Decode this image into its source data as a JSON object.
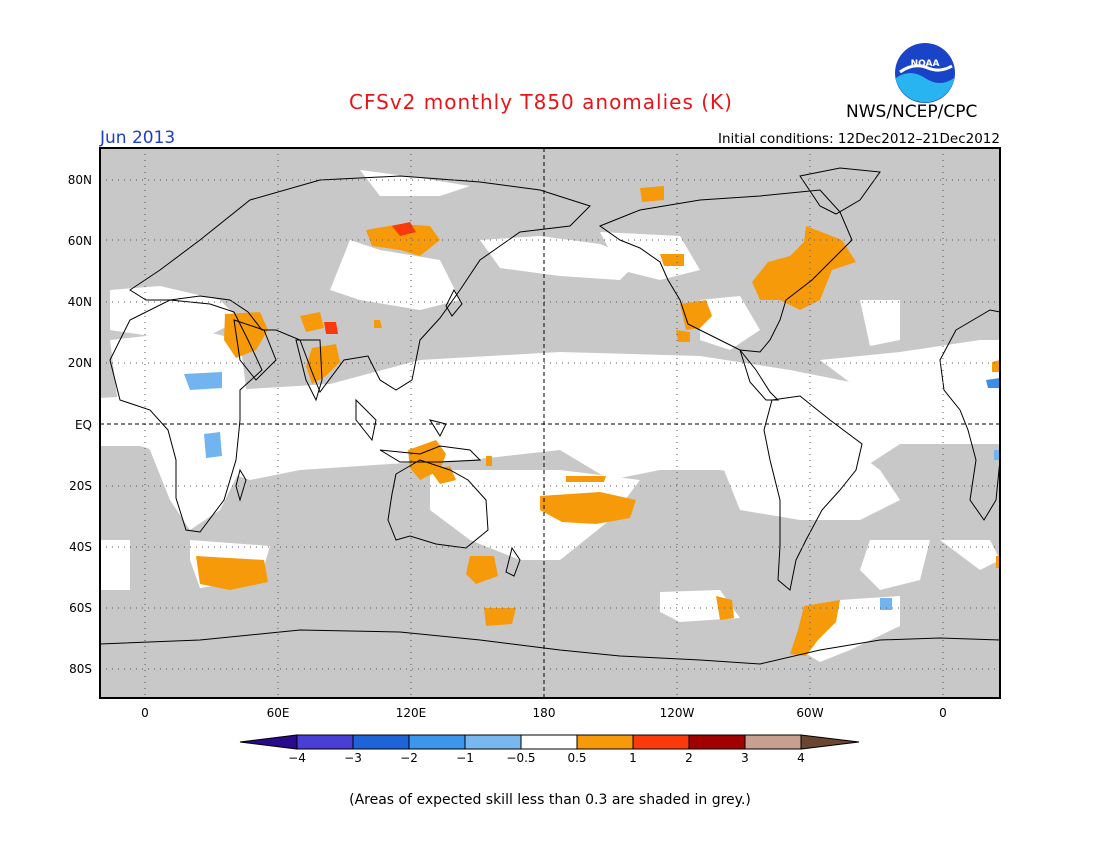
{
  "header": {
    "title": "CFSv2 monthly T850 anomalies (K)",
    "date": "Jun 2013",
    "initial_conditions": "Initial conditions: 12Dec2012–21Dec2012",
    "agency": "NWS/NCEP/CPC",
    "logo_text": "NOAA"
  },
  "map": {
    "lat_labels": [
      "80N",
      "60N",
      "40N",
      "20N",
      "EQ",
      "20S",
      "40S",
      "60S",
      "80S"
    ],
    "lon_labels": [
      "0",
      "60E",
      "120E",
      "180",
      "120W",
      "60W",
      "0"
    ],
    "colors": {
      "skill_grey": "#c8c8c8",
      "ocean_white": "#ffffff",
      "anom_05_1": "#f79a0a",
      "anom_1_2": "#fa3a0a",
      "anom_neg_05_1": "#72b4f0",
      "anom_neg_1_2": "#3a8ee8"
    }
  },
  "colorbar": {
    "tick_labels": [
      "−4",
      "−3",
      "−2",
      "−1",
      "−0.5",
      "0.5",
      "1",
      "2",
      "3",
      "4"
    ],
    "colors": [
      "#2a0a8c",
      "#4a3fd4",
      "#1e64d8",
      "#3c96ec",
      "#78b8f0",
      "#ffffff",
      "#f79a0a",
      "#fa3a0a",
      "#a00000",
      "#c8a090",
      "#6a4632"
    ]
  },
  "footnote": "(Areas of expected skill less than 0.3 are shaded in grey.)"
}
